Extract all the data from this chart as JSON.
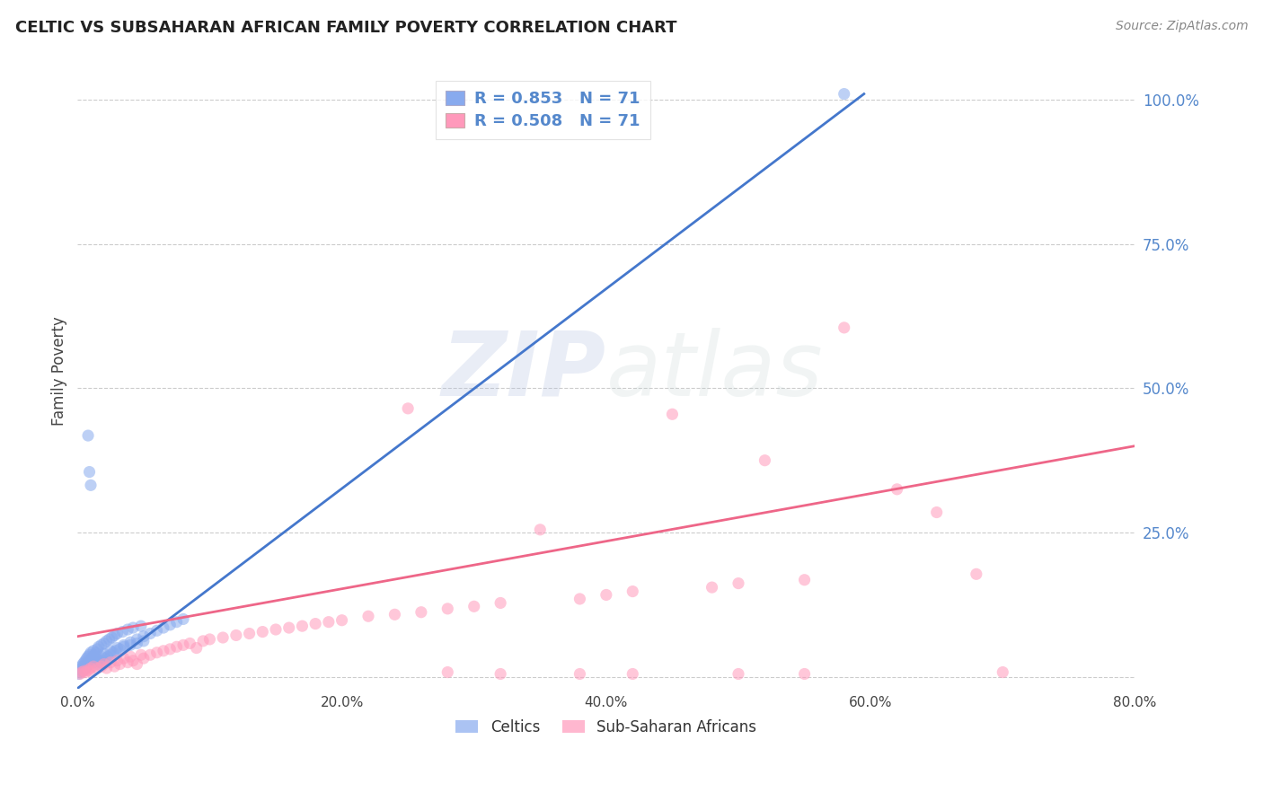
{
  "title": "CELTIC VS SUBSAHARAN AFRICAN FAMILY POVERTY CORRELATION CHART",
  "source": "Source: ZipAtlas.com",
  "ylabel": "Family Poverty",
  "yticks": [
    0.0,
    0.25,
    0.5,
    0.75,
    1.0
  ],
  "ytick_labels": [
    "",
    "25.0%",
    "50.0%",
    "75.0%",
    "100.0%"
  ],
  "xlim": [
    0.0,
    0.8
  ],
  "ylim": [
    -0.02,
    1.08
  ],
  "watermark_zip": "ZIP",
  "watermark_atlas": "atlas",
  "legend_label1": "Celtics",
  "legend_label2": "Sub-Saharan Africans",
  "blue_color": "#88AAEE",
  "pink_color": "#FF99BB",
  "blue_line_color": "#4477CC",
  "pink_line_color": "#EE6688",
  "blue_scatter": [
    [
      0.001,
      0.005
    ],
    [
      0.002,
      0.008
    ],
    [
      0.002,
      0.012
    ],
    [
      0.003,
      0.015
    ],
    [
      0.003,
      0.018
    ],
    [
      0.004,
      0.01
    ],
    [
      0.004,
      0.022
    ],
    [
      0.005,
      0.025
    ],
    [
      0.005,
      0.02
    ],
    [
      0.006,
      0.015
    ],
    [
      0.006,
      0.028
    ],
    [
      0.007,
      0.032
    ],
    [
      0.007,
      0.018
    ],
    [
      0.008,
      0.035
    ],
    [
      0.008,
      0.022
    ],
    [
      0.009,
      0.038
    ],
    [
      0.009,
      0.025
    ],
    [
      0.01,
      0.042
    ],
    [
      0.01,
      0.028
    ],
    [
      0.011,
      0.032
    ],
    [
      0.012,
      0.045
    ],
    [
      0.012,
      0.035
    ],
    [
      0.013,
      0.038
    ],
    [
      0.014,
      0.042
    ],
    [
      0.015,
      0.048
    ],
    [
      0.015,
      0.022
    ],
    [
      0.016,
      0.052
    ],
    [
      0.017,
      0.025
    ],
    [
      0.018,
      0.055
    ],
    [
      0.019,
      0.028
    ],
    [
      0.02,
      0.058
    ],
    [
      0.021,
      0.032
    ],
    [
      0.022,
      0.062
    ],
    [
      0.023,
      0.035
    ],
    [
      0.024,
      0.065
    ],
    [
      0.025,
      0.038
    ],
    [
      0.026,
      0.068
    ],
    [
      0.027,
      0.042
    ],
    [
      0.028,
      0.072
    ],
    [
      0.029,
      0.045
    ],
    [
      0.03,
      0.075
    ],
    [
      0.032,
      0.048
    ],
    [
      0.034,
      0.078
    ],
    [
      0.035,
      0.052
    ],
    [
      0.038,
      0.082
    ],
    [
      0.04,
      0.055
    ],
    [
      0.042,
      0.085
    ],
    [
      0.045,
      0.058
    ],
    [
      0.048,
      0.088
    ],
    [
      0.05,
      0.062
    ],
    [
      0.008,
      0.418
    ],
    [
      0.009,
      0.355
    ],
    [
      0.01,
      0.332
    ],
    [
      0.012,
      0.025
    ],
    [
      0.015,
      0.03
    ],
    [
      0.018,
      0.035
    ],
    [
      0.02,
      0.04
    ],
    [
      0.025,
      0.045
    ],
    [
      0.03,
      0.05
    ],
    [
      0.035,
      0.055
    ],
    [
      0.04,
      0.06
    ],
    [
      0.045,
      0.065
    ],
    [
      0.05,
      0.07
    ],
    [
      0.055,
      0.075
    ],
    [
      0.06,
      0.08
    ],
    [
      0.065,
      0.085
    ],
    [
      0.07,
      0.09
    ],
    [
      0.075,
      0.095
    ],
    [
      0.08,
      0.1
    ],
    [
      0.58,
      1.01
    ]
  ],
  "pink_scatter": [
    [
      0.002,
      0.005
    ],
    [
      0.003,
      0.008
    ],
    [
      0.005,
      0.01
    ],
    [
      0.006,
      0.008
    ],
    [
      0.008,
      0.012
    ],
    [
      0.009,
      0.01
    ],
    [
      0.01,
      0.015
    ],
    [
      0.012,
      0.018
    ],
    [
      0.015,
      0.015
    ],
    [
      0.018,
      0.018
    ],
    [
      0.02,
      0.022
    ],
    [
      0.022,
      0.015
    ],
    [
      0.025,
      0.025
    ],
    [
      0.028,
      0.018
    ],
    [
      0.03,
      0.028
    ],
    [
      0.032,
      0.022
    ],
    [
      0.035,
      0.032
    ],
    [
      0.038,
      0.025
    ],
    [
      0.04,
      0.035
    ],
    [
      0.042,
      0.028
    ],
    [
      0.045,
      0.022
    ],
    [
      0.048,
      0.038
    ],
    [
      0.05,
      0.032
    ],
    [
      0.055,
      0.038
    ],
    [
      0.06,
      0.042
    ],
    [
      0.065,
      0.045
    ],
    [
      0.07,
      0.048
    ],
    [
      0.075,
      0.052
    ],
    [
      0.08,
      0.055
    ],
    [
      0.085,
      0.058
    ],
    [
      0.09,
      0.05
    ],
    [
      0.095,
      0.062
    ],
    [
      0.1,
      0.065
    ],
    [
      0.11,
      0.068
    ],
    [
      0.12,
      0.072
    ],
    [
      0.13,
      0.075
    ],
    [
      0.14,
      0.078
    ],
    [
      0.15,
      0.082
    ],
    [
      0.16,
      0.085
    ],
    [
      0.17,
      0.088
    ],
    [
      0.18,
      0.092
    ],
    [
      0.19,
      0.095
    ],
    [
      0.2,
      0.098
    ],
    [
      0.22,
      0.105
    ],
    [
      0.24,
      0.108
    ],
    [
      0.25,
      0.465
    ],
    [
      0.26,
      0.112
    ],
    [
      0.28,
      0.118
    ],
    [
      0.3,
      0.122
    ],
    [
      0.32,
      0.128
    ],
    [
      0.35,
      0.255
    ],
    [
      0.38,
      0.135
    ],
    [
      0.4,
      0.142
    ],
    [
      0.42,
      0.148
    ],
    [
      0.45,
      0.455
    ],
    [
      0.48,
      0.155
    ],
    [
      0.5,
      0.162
    ],
    [
      0.52,
      0.375
    ],
    [
      0.55,
      0.168
    ],
    [
      0.58,
      0.605
    ],
    [
      0.62,
      0.325
    ],
    [
      0.65,
      0.285
    ],
    [
      0.68,
      0.178
    ],
    [
      0.7,
      0.008
    ],
    [
      0.55,
      0.005
    ],
    [
      0.42,
      0.005
    ],
    [
      0.38,
      0.005
    ],
    [
      0.32,
      0.005
    ],
    [
      0.28,
      0.008
    ],
    [
      0.5,
      0.005
    ]
  ],
  "blue_line": [
    [
      0.0,
      -0.02
    ],
    [
      0.595,
      1.01
    ]
  ],
  "pink_line": [
    [
      0.0,
      0.07
    ],
    [
      0.8,
      0.4
    ]
  ]
}
